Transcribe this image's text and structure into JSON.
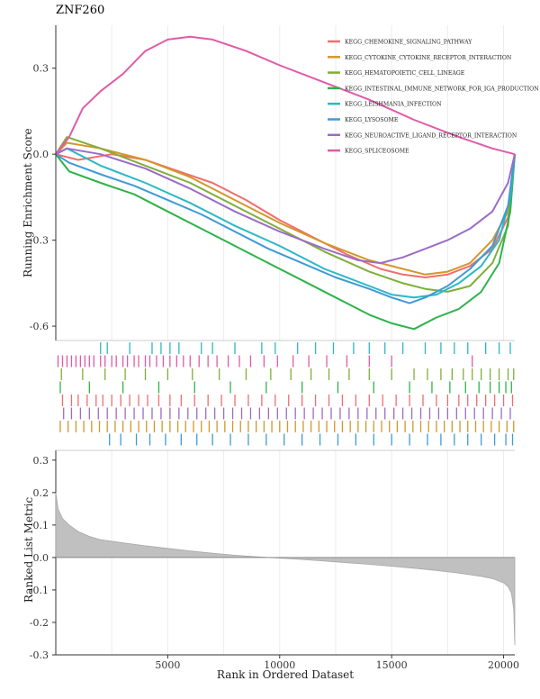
{
  "gene": "ZNF260",
  "colors": {
    "KEGG_CHEMOKINE_SIGNALING_PATHWAY": "#f26d6d",
    "KEGG_CYTOKINE_CYTOKINE_RECEPTOR_INTERACTION": "#d4972b",
    "KEGG_HEMATOPOIETIC_CELL_LINEAGE": "#7fae3a",
    "KEGG_INTESTINAL_IMMUNE_NETWORK_FOR_IGA_PRODUCTION": "#2db34a",
    "KEGG_LEISHMANIA_INFECTION": "#2cb8c4",
    "KEGG_LYSOSOME": "#3f9ad6",
    "KEGG_NEUROACTIVE_LIGAND_RECEPTOR_INTERACTION": "#9b6cc6",
    "KEGG_SPLICEOSOME": "#e05aa8",
    "metric_fill": "#c0c0c0"
  },
  "chart_data": [
    {
      "type": "line",
      "title": "ZNF260",
      "ylabel": "Running Enrichment Score",
      "xlim": [
        0,
        20500
      ],
      "ylim": [
        -0.65,
        0.45
      ],
      "yticks": [
        0.3,
        0.0,
        -0.3,
        -0.6
      ],
      "ytick_labels": [
        "0.3",
        "0.0",
        "-0.3",
        "-0.6"
      ],
      "legend_position": "top-right",
      "grid": "vertical",
      "series": [
        {
          "name": "KEGG_CHEMOKINE_SIGNALING_PATHWAY",
          "x": [
            0,
            1000,
            2500,
            4000,
            5500,
            7000,
            8500,
            10000,
            11500,
            13000,
            14500,
            15500,
            16500,
            17500,
            18500,
            19500,
            20200,
            20500
          ],
          "y": [
            0.0,
            -0.02,
            0.0,
            -0.02,
            -0.06,
            -0.1,
            -0.16,
            -0.23,
            -0.29,
            -0.35,
            -0.4,
            -0.42,
            -0.43,
            -0.42,
            -0.39,
            -0.33,
            -0.22,
            0.0
          ]
        },
        {
          "name": "KEGG_CYTOKINE_CYTOKINE_RECEPTOR_INTERACTION",
          "x": [
            0,
            500,
            2000,
            4000,
            6000,
            8000,
            10000,
            12000,
            14000,
            15500,
            16500,
            17500,
            18500,
            19500,
            20200,
            20500
          ],
          "y": [
            0.0,
            0.04,
            0.02,
            -0.02,
            -0.08,
            -0.16,
            -0.24,
            -0.31,
            -0.37,
            -0.4,
            -0.42,
            -0.41,
            -0.38,
            -0.3,
            -0.2,
            0.0
          ]
        },
        {
          "name": "KEGG_HEMATOPOIETIC_CELL_LINEAGE",
          "x": [
            0,
            500,
            2000,
            4000,
            6000,
            8000,
            10000,
            12000,
            14000,
            15500,
            16500,
            17500,
            18500,
            19500,
            20200,
            20500
          ],
          "y": [
            0.0,
            0.06,
            0.02,
            -0.04,
            -0.1,
            -0.18,
            -0.26,
            -0.34,
            -0.41,
            -0.45,
            -0.47,
            -0.48,
            -0.46,
            -0.38,
            -0.25,
            0.0
          ]
        },
        {
          "name": "KEGG_INTESTINAL_IMMUNE_NETWORK_FOR_IGA_PRODUCTION",
          "x": [
            0,
            600,
            2000,
            3500,
            5000,
            6500,
            8000,
            9500,
            11000,
            12500,
            14000,
            15000,
            16000,
            17000,
            18000,
            19000,
            19800,
            20300,
            20500
          ],
          "y": [
            0.0,
            -0.06,
            -0.1,
            -0.14,
            -0.2,
            -0.26,
            -0.32,
            -0.38,
            -0.44,
            -0.5,
            -0.56,
            -0.59,
            -0.61,
            -0.57,
            -0.54,
            -0.48,
            -0.38,
            -0.2,
            0.0
          ]
        },
        {
          "name": "KEGG_LEISHMANIA_INFECTION",
          "x": [
            0,
            500,
            2000,
            4000,
            6000,
            8000,
            10000,
            12000,
            14000,
            15000,
            16000,
            17000,
            18000,
            19000,
            19800,
            20300,
            20500
          ],
          "y": [
            0.0,
            0.02,
            -0.04,
            -0.1,
            -0.17,
            -0.25,
            -0.32,
            -0.4,
            -0.46,
            -0.49,
            -0.5,
            -0.49,
            -0.45,
            -0.39,
            -0.3,
            -0.15,
            0.0
          ]
        },
        {
          "name": "KEGG_LYSOSOME",
          "x": [
            0,
            600,
            2000,
            3500,
            5000,
            6500,
            8000,
            9500,
            11000,
            12500,
            14000,
            15000,
            15800,
            16500,
            17500,
            18500,
            19500,
            20200,
            20500
          ],
          "y": [
            0.0,
            -0.03,
            -0.07,
            -0.11,
            -0.16,
            -0.21,
            -0.27,
            -0.33,
            -0.38,
            -0.43,
            -0.47,
            -0.5,
            -0.52,
            -0.5,
            -0.46,
            -0.4,
            -0.32,
            -0.18,
            0.0
          ]
        },
        {
          "name": "KEGG_NEUROACTIVE_LIGAND_RECEPTOR_INTERACTION",
          "x": [
            0,
            500,
            2000,
            4000,
            6000,
            8000,
            10000,
            12000,
            13500,
            14500,
            15500,
            16500,
            17500,
            18500,
            19500,
            20200,
            20500
          ],
          "y": [
            0.0,
            0.02,
            0.0,
            -0.05,
            -0.12,
            -0.2,
            -0.27,
            -0.33,
            -0.37,
            -0.38,
            -0.36,
            -0.33,
            -0.3,
            -0.26,
            -0.2,
            -0.1,
            0.0
          ]
        },
        {
          "name": "KEGG_SPLICEOSOME",
          "x": [
            0,
            600,
            1200,
            2000,
            3000,
            4000,
            5000,
            6000,
            7000,
            8500,
            10000,
            12000,
            14000,
            16000,
            18000,
            19500,
            20500
          ],
          "y": [
            0.0,
            0.06,
            0.16,
            0.22,
            0.28,
            0.36,
            0.4,
            0.41,
            0.4,
            0.36,
            0.31,
            0.25,
            0.19,
            0.12,
            0.06,
            0.02,
            0.0
          ]
        }
      ]
    },
    {
      "type": "barcode",
      "series": [
        {
          "name": "KEGG_LEISHMANIA_INFECTION",
          "positions": [
            2000,
            2300,
            3300,
            4300,
            4700,
            5100,
            5500,
            6500,
            7000,
            8000,
            9200,
            9800,
            10800,
            11600,
            12400,
            13300,
            14000,
            14700,
            15500,
            16500,
            17200,
            17800,
            18400,
            19200,
            19800,
            20300
          ]
        },
        {
          "name": "KEGG_SPLICEOSOME",
          "positions": [
            100,
            300,
            500,
            700,
            900,
            1100,
            1300,
            1500,
            1700,
            2000,
            2200,
            2500,
            2700,
            3000,
            3200,
            3500,
            3700,
            4000,
            4200,
            4500,
            4800,
            5100,
            5400,
            5700,
            6000,
            6400,
            6800,
            7200,
            7700,
            8200,
            8700,
            9300,
            9900,
            10600,
            11300,
            12100,
            13000,
            14000,
            15000,
            18600
          ]
        },
        {
          "name": "KEGG_HEMATOPOIETIC_CELL_LINEAGE",
          "positions": [
            250,
            1200,
            2200,
            3100,
            4000,
            5000,
            6100,
            7300,
            8500,
            9600,
            10500,
            11400,
            12200,
            13100,
            14000,
            15000,
            16000,
            16600,
            17200,
            17700,
            18200,
            18600,
            19000,
            19400,
            19800,
            20200,
            20450
          ]
        },
        {
          "name": "KEGG_INTESTINAL_IMMUNE_NETWORK_FOR_IGA_PRODUCTION",
          "positions": [
            200,
            1500,
            3000,
            4600,
            6200,
            7800,
            9400,
            11000,
            12600,
            14200,
            15800,
            16800,
            17600,
            18300,
            18900,
            19400,
            19800,
            20100,
            20350
          ]
        },
        {
          "name": "KEGG_CHEMOKINE_SIGNALING_PATHWAY",
          "positions": [
            300,
            700,
            1000,
            1400,
            1800,
            2100,
            2500,
            2900,
            3300,
            3700,
            4100,
            4600,
            5100,
            5600,
            6200,
            6800,
            7400,
            8000,
            8600,
            9200,
            9800,
            10400,
            11000,
            11600,
            12200,
            12800,
            13400,
            14000,
            14600,
            15200,
            15800,
            16400,
            17000,
            17500,
            18000,
            18400,
            18800,
            19200,
            19600,
            20000,
            20400
          ]
        },
        {
          "name": "KEGG_NEUROACTIVE_LIGAND_RECEPTOR_INTERACTION",
          "positions": [
            350,
            700,
            1100,
            1500,
            1900,
            2300,
            2700,
            3100,
            3500,
            3900,
            4300,
            4700,
            5100,
            5500,
            5900,
            6300,
            6700,
            7100,
            7500,
            7900,
            8300,
            8700,
            9100,
            9500,
            9900,
            10300,
            10700,
            11100,
            11500,
            11900,
            12300,
            12700,
            13100,
            13500,
            13900,
            14300,
            14700,
            15100,
            15500,
            15900,
            16300,
            16700,
            17100,
            17500,
            17900,
            18300,
            18700,
            19100,
            19500,
            19900,
            20300
          ]
        },
        {
          "name": "KEGG_CYTOKINE_CYTOKINE_RECEPTOR_INTERACTION",
          "positions": [
            200,
            550,
            900,
            1250,
            1600,
            1950,
            2300,
            2650,
            3000,
            3350,
            3700,
            4050,
            4400,
            4750,
            5100,
            5450,
            5800,
            6150,
            6500,
            6850,
            7200,
            7550,
            7900,
            8250,
            8600,
            8950,
            9300,
            9650,
            10000,
            10350,
            10700,
            11050,
            11400,
            11750,
            12100,
            12450,
            12800,
            13150,
            13500,
            13850,
            14200,
            14550,
            14900,
            15250,
            15600,
            15950,
            16300,
            16650,
            17000,
            17350,
            17700,
            18050,
            18400,
            18750,
            19100,
            19450,
            19800,
            20150,
            20450
          ]
        },
        {
          "name": "KEGG_LYSOSOME",
          "positions": [
            2400,
            2900,
            3600,
            4200,
            4900,
            5600,
            6300,
            7000,
            7800,
            8600,
            9400,
            10200,
            11000,
            11800,
            12600,
            13400,
            14200,
            15000,
            15800,
            16600,
            17200,
            17800,
            18400,
            19000,
            19600,
            20100,
            20400
          ]
        }
      ]
    },
    {
      "type": "area",
      "ylabel": "Ranked List Metric",
      "xlabel": "Rank in Ordered Dataset",
      "xlim": [
        0,
        20500
      ],
      "ylim": [
        -0.3,
        0.33
      ],
      "xticks": [
        5000,
        10000,
        15000,
        20000
      ],
      "yticks": [
        0.3,
        0.2,
        0.1,
        0.0,
        -0.1,
        -0.2,
        -0.3
      ],
      "ytick_labels": [
        "0.3",
        "0.2",
        "0.1",
        "0.0",
        "-0.1",
        "-0.2",
        "-0.3"
      ],
      "x": [
        0,
        100,
        300,
        600,
        1000,
        1500,
        2000,
        3000,
        4000,
        5000,
        6000,
        7000,
        8000,
        9000,
        10000,
        11000,
        12000,
        13000,
        14000,
        15000,
        16000,
        17000,
        18000,
        19000,
        19500,
        20000,
        20200,
        20350,
        20450,
        20500
      ],
      "y": [
        0.2,
        0.15,
        0.12,
        0.1,
        0.08,
        0.065,
        0.055,
        0.045,
        0.036,
        0.028,
        0.02,
        0.013,
        0.007,
        0.002,
        -0.002,
        -0.006,
        -0.011,
        -0.016,
        -0.021,
        -0.027,
        -0.033,
        -0.04,
        -0.048,
        -0.058,
        -0.065,
        -0.078,
        -0.09,
        -0.11,
        -0.16,
        -0.27
      ]
    }
  ]
}
